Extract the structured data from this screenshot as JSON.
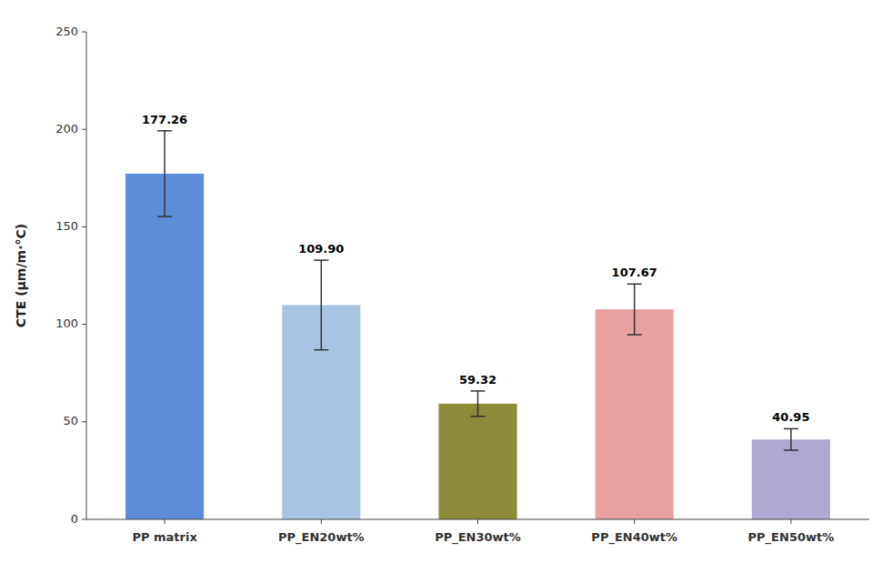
{
  "chart_data": {
    "type": "bar",
    "categories": [
      "PP matrix",
      "PP_EN20wt%",
      "PP_EN30wt%",
      "PP_EN40wt%",
      "PP_EN50wt%"
    ],
    "values": [
      177.26,
      109.9,
      59.32,
      107.67,
      40.95
    ],
    "value_labels": [
      "177.26",
      "109.90",
      "59.32",
      "107.67",
      "40.95"
    ],
    "errors": [
      22.0,
      23.0,
      6.5,
      13.0,
      5.5
    ],
    "colors": [
      "#5B8DD9",
      "#A8C4E0",
      "#8B8B3A",
      "#E8A0A0",
      "#B0A8D0"
    ],
    "ylabel": "CTE (μm/m·°C)",
    "ylim": [
      0,
      250
    ],
    "yticks": [
      0,
      50,
      100,
      150,
      200,
      250
    ],
    "grid": false,
    "data_labels": true
  }
}
